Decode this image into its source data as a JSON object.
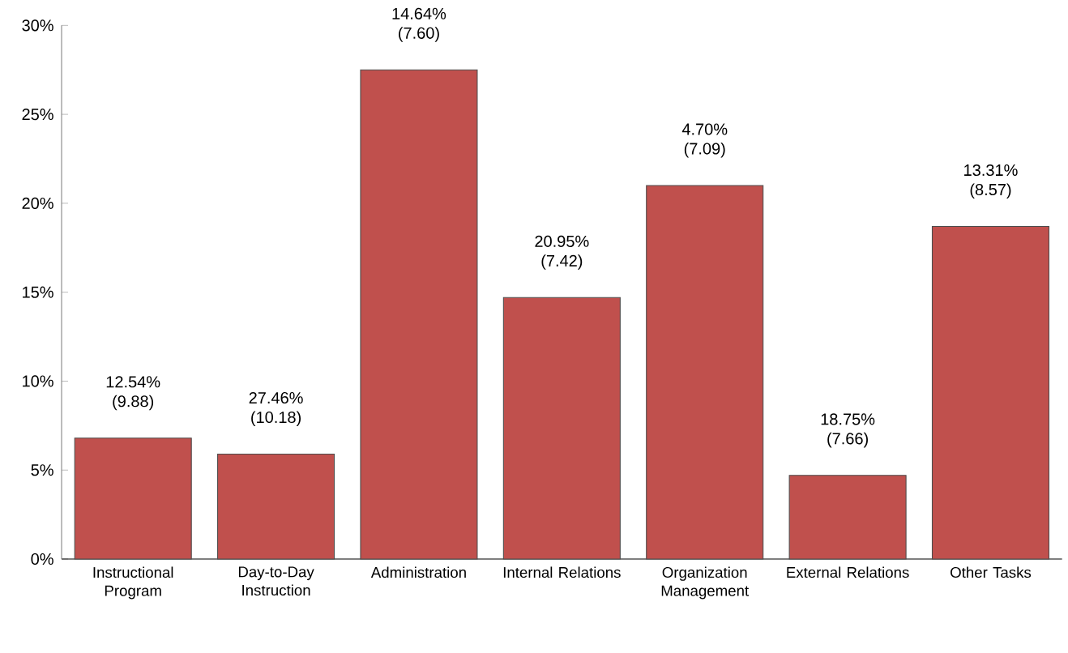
{
  "chart_data": {
    "type": "bar",
    "categories": [
      "Instructional Program",
      "Day-to-Day Instruction",
      "Administration",
      "Internal Relations",
      "Organization Management",
      "External Relations",
      "Other Tasks"
    ],
    "values": [
      6.8,
      5.9,
      27.5,
      14.7,
      21.0,
      4.7,
      18.7
    ],
    "annotations": [
      "12.54% (9.88)",
      "27.46% (10.18)",
      "14.64% (7.60)",
      "20.95% (7.42)",
      "4.70% (7.09)",
      "18.75% (7.66)",
      "13.31% (8.57)"
    ],
    "color": "#c0504d",
    "ylim": [
      0,
      30
    ],
    "yticks": [
      {
        "value": 0,
        "label": "0%"
      },
      {
        "value": 5,
        "label": "5%"
      },
      {
        "value": 10,
        "label": "10%"
      },
      {
        "value": 15,
        "label": "15%"
      },
      {
        "value": 20,
        "label": "20%"
      },
      {
        "value": 25,
        "label": "25%"
      },
      {
        "value": 30,
        "label": "30%"
      }
    ]
  }
}
